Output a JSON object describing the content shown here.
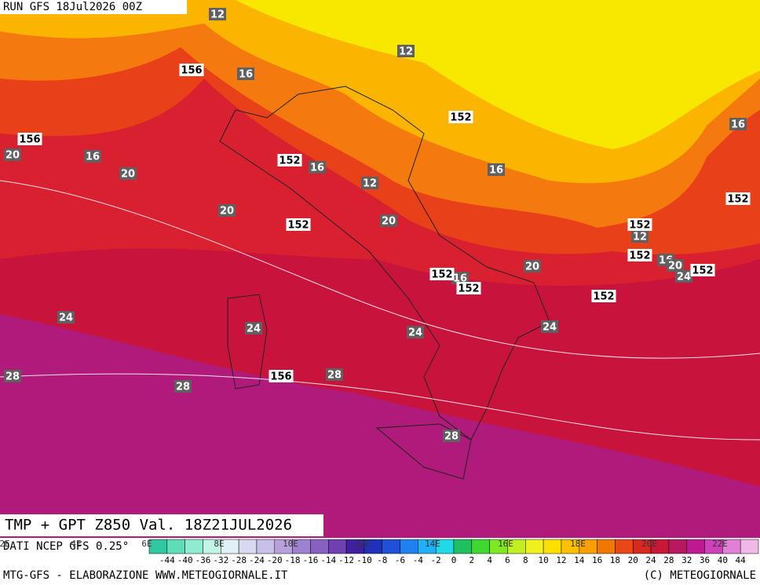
{
  "header": {
    "run": "RUN GFS 18Jul2026 00Z",
    "title": "TMP + GPT Z850 Val. 18Z21JUL2026",
    "source": "DATI NCEP GFS 0.25°"
  },
  "footer": {
    "left": "MTG-GFS - ELABORAZIONE WWW.METEOGIORNALE.IT",
    "right": "(C) METEOGIORNALE"
  },
  "map": {
    "temperature_labels": [
      12,
      12,
      16,
      16,
      20,
      16,
      20,
      16,
      16,
      12,
      20,
      20,
      12,
      16,
      20,
      24,
      20,
      16,
      24,
      24,
      24,
      24,
      28,
      28,
      28,
      28
    ],
    "height_labels": [
      156,
      156,
      152,
      152,
      152,
      152,
      152,
      152,
      152,
      152,
      152,
      152,
      156
    ],
    "longitudes": [
      "2E",
      "4E",
      "6E",
      "8E",
      "10E",
      "12E",
      "14E",
      "16E",
      "18E",
      "20E",
      "22E"
    ]
  },
  "colorbar": {
    "labels": [
      -44,
      -40,
      -36,
      -32,
      -28,
      -24,
      -20,
      -18,
      -16,
      -14,
      -12,
      -10,
      -8,
      -6,
      -4,
      -2,
      0,
      2,
      4,
      6,
      8,
      10,
      12,
      14,
      16,
      18,
      20,
      24,
      28,
      32,
      36,
      40,
      44
    ],
    "colors": [
      "#30c8a0",
      "#60dcb8",
      "#90ecd0",
      "#c0f4e4",
      "#e0f0f4",
      "#d8d8f0",
      "#c8c0e8",
      "#b8a0dc",
      "#a080d0",
      "#8860c0",
      "#7040b0",
      "#4020a0",
      "#2030b8",
      "#2050d8",
      "#2080f0",
      "#20b0f8",
      "#20d8e8",
      "#20c060",
      "#40d830",
      "#80e820",
      "#c0f020",
      "#f0f020",
      "#fce000",
      "#fcc000",
      "#f8a000",
      "#f07800",
      "#e84818",
      "#d82820",
      "#c81838",
      "#b81860",
      "#c01890",
      "#d040b8",
      "#e080d8",
      "#f0b8e8"
    ]
  }
}
